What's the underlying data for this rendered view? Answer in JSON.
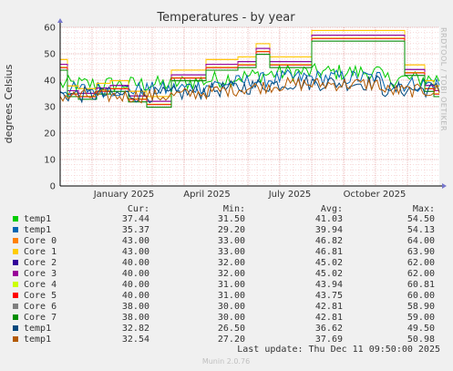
{
  "chart_data": {
    "type": "line",
    "title": "Temperatures - by year",
    "ylabel": "degrees Celsius",
    "ylim": [
      0,
      60
    ],
    "yticks": [
      "0",
      "10",
      "20",
      "30",
      "40",
      "50",
      "60"
    ],
    "xticks": [
      "January 2025",
      "April 2025",
      "July 2025",
      "October 2025"
    ],
    "grid": true,
    "watermark": "RRDTOOL / TOBI OETIKER",
    "legend_headers": {
      "cur": "Cur:",
      "min": "Min:",
      "avg": "Avg:",
      "max": "Max:"
    },
    "series": [
      {
        "name": "temp1",
        "color": "#00cc00",
        "cur": "37.44",
        "min": "31.50",
        "avg": "41.03",
        "max": "54.50",
        "base": 38.5,
        "jit": 3.2
      },
      {
        "name": "temp1",
        "color": "#0066b3",
        "cur": "35.37",
        "min": "29.20",
        "avg": "39.94",
        "max": "54.13",
        "base": 36.5,
        "jit": 3.0
      },
      {
        "name": "Core 0",
        "color": "#ff8000",
        "cur": "43.00",
        "min": "33.00",
        "avg": "46.82",
        "max": "64.00",
        "step": true
      },
      {
        "name": "Core 1",
        "color": "#ffcc00",
        "cur": "43.00",
        "min": "33.00",
        "avg": "46.81",
        "max": "63.90",
        "step": true
      },
      {
        "name": "Core 2",
        "color": "#330099",
        "cur": "40.00",
        "min": "32.00",
        "avg": "45.02",
        "max": "62.00",
        "step": true
      },
      {
        "name": "Core 3",
        "color": "#990099",
        "cur": "40.00",
        "min": "32.00",
        "avg": "45.02",
        "max": "62.00",
        "step": true
      },
      {
        "name": "Core 4",
        "color": "#ccff00",
        "cur": "40.00",
        "min": "31.00",
        "avg": "43.94",
        "max": "60.81",
        "step": true
      },
      {
        "name": "Core 5",
        "color": "#ff0000",
        "cur": "40.00",
        "min": "31.00",
        "avg": "43.75",
        "max": "60.00",
        "step": true
      },
      {
        "name": "Core 6",
        "color": "#808080",
        "cur": "38.00",
        "min": "30.00",
        "avg": "42.81",
        "max": "58.90",
        "step": true
      },
      {
        "name": "Core 7",
        "color": "#008f00",
        "cur": "38.00",
        "min": "30.00",
        "avg": "42.81",
        "max": "59.00",
        "step": true
      },
      {
        "name": "temp1",
        "color": "#00487d",
        "cur": "32.82",
        "min": "26.50",
        "avg": "36.62",
        "max": "49.50",
        "base": 34.5,
        "jit": 3.0
      },
      {
        "name": "temp1",
        "color": "#b35a00",
        "cur": "32.54",
        "min": "27.20",
        "avg": "37.69",
        "max": "50.98",
        "base": 34.0,
        "jit": 2.6
      }
    ],
    "last_update": "Last update: Thu Dec 11 09:50:00 2025",
    "footer": "Munin 2.0.76"
  }
}
